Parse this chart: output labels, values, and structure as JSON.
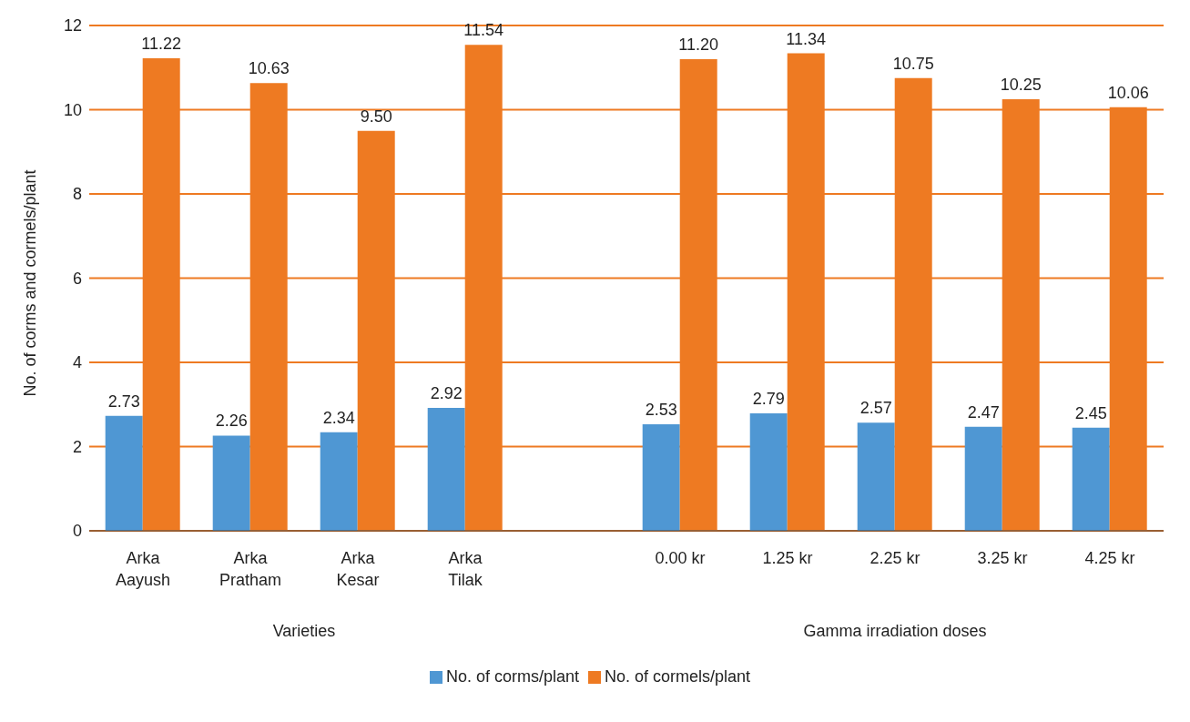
{
  "chart_data": {
    "type": "bar",
    "ylabel": "No. of corms and cormels/plant",
    "categories": [
      "Arka Aayush",
      "Arka Pratham",
      "Arka Kesar",
      "Arka Tilak",
      null,
      "0.00 kr",
      "1.25 kr",
      "2.25 kr",
      "3.25 kr",
      "4.25 kr"
    ],
    "series": [
      {
        "name": "No. of corms/plant",
        "color": "#4f97d3",
        "values": [
          2.73,
          2.26,
          2.34,
          2.92,
          null,
          2.53,
          2.79,
          2.57,
          2.47,
          2.45
        ],
        "value_labels": [
          "2.73",
          "2.26",
          "2.34",
          "2.92",
          null,
          "2.53",
          "2.79",
          "2.57",
          "2.47",
          "2.45"
        ]
      },
      {
        "name": "No. of cormels/plant",
        "color": "#ee7a22",
        "values": [
          11.22,
          10.63,
          9.5,
          11.54,
          null,
          11.2,
          11.34,
          10.75,
          10.25,
          10.06
        ],
        "value_labels": [
          "11.22",
          "10.63",
          "9.50",
          "11.54",
          null,
          "11.20",
          "11.34",
          "10.75",
          "10.25",
          "10.06"
        ]
      }
    ],
    "ylim": [
      0,
      12
    ],
    "yticks": [
      0,
      2,
      4,
      6,
      8,
      10,
      12
    ],
    "grid": "y",
    "legend": "bottom",
    "annotations": [
      "Varieties",
      "Gamma irradiation doses"
    ]
  }
}
